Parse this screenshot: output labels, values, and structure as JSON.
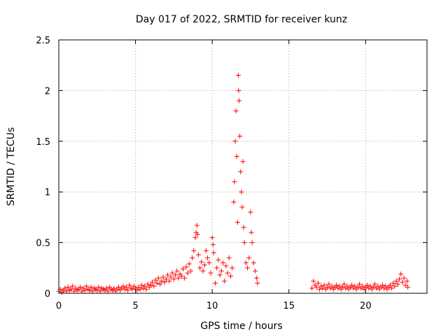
{
  "chart_data": {
    "type": "scatter",
    "title": "Day 017 of 2022, SRMTID for receiver kunz",
    "xlabel": "GPS time / hours",
    "ylabel": "SRMTID / TECUs",
    "xlim": [
      0,
      24
    ],
    "ylim": [
      0,
      2.5
    ],
    "xticks": [
      0,
      5,
      10,
      15,
      20
    ],
    "yticks": [
      0,
      0.5,
      1,
      1.5,
      2,
      2.5
    ],
    "ytick_labels": [
      "0",
      "0.5",
      "1",
      "1.5",
      "2",
      "2.5"
    ],
    "xtick_labels": [
      "0",
      "5",
      "10",
      "15",
      "20"
    ],
    "grid": true,
    "marker": "+",
    "colors": {
      "points": "#ff0000",
      "axes": "#000000",
      "grid": "#a0a0a0"
    },
    "series": [
      {
        "name": "SRMTID",
        "points": [
          [
            0.0,
            0.02
          ],
          [
            0.1,
            0.04
          ],
          [
            0.2,
            0.01
          ],
          [
            0.3,
            0.03
          ],
          [
            0.4,
            0.05
          ],
          [
            0.5,
            0.02
          ],
          [
            0.6,
            0.06
          ],
          [
            0.7,
            0.03
          ],
          [
            0.8,
            0.04
          ],
          [
            0.9,
            0.07
          ],
          [
            1.0,
            0.02
          ],
          [
            1.1,
            0.05
          ],
          [
            1.2,
            0.03
          ],
          [
            1.3,
            0.04
          ],
          [
            1.4,
            0.06
          ],
          [
            1.5,
            0.02
          ],
          [
            1.6,
            0.05
          ],
          [
            1.7,
            0.03
          ],
          [
            1.8,
            0.07
          ],
          [
            1.9,
            0.04
          ],
          [
            2.0,
            0.03
          ],
          [
            2.1,
            0.06
          ],
          [
            2.2,
            0.02
          ],
          [
            2.3,
            0.05
          ],
          [
            2.4,
            0.04
          ],
          [
            2.5,
            0.03
          ],
          [
            2.6,
            0.06
          ],
          [
            2.7,
            0.02
          ],
          [
            2.8,
            0.05
          ],
          [
            2.9,
            0.04
          ],
          [
            3.0,
            0.03
          ],
          [
            3.1,
            0.05
          ],
          [
            3.2,
            0.02
          ],
          [
            3.3,
            0.06
          ],
          [
            3.4,
            0.04
          ],
          [
            3.5,
            0.03
          ],
          [
            3.6,
            0.05
          ],
          [
            3.7,
            0.02
          ],
          [
            3.8,
            0.04
          ],
          [
            3.9,
            0.06
          ],
          [
            4.0,
            0.03
          ],
          [
            4.1,
            0.05
          ],
          [
            4.2,
            0.07
          ],
          [
            4.3,
            0.04
          ],
          [
            4.4,
            0.06
          ],
          [
            4.5,
            0.03
          ],
          [
            4.6,
            0.08
          ],
          [
            4.7,
            0.05
          ],
          [
            4.8,
            0.04
          ],
          [
            4.9,
            0.07
          ],
          [
            5.0,
            0.05
          ],
          [
            5.1,
            0.03
          ],
          [
            5.2,
            0.06
          ],
          [
            5.3,
            0.04
          ],
          [
            5.4,
            0.08
          ],
          [
            5.5,
            0.05
          ],
          [
            5.6,
            0.07
          ],
          [
            5.7,
            0.04
          ],
          [
            5.8,
            0.09
          ],
          [
            5.9,
            0.06
          ],
          [
            6.0,
            0.08
          ],
          [
            6.1,
            0.11
          ],
          [
            6.2,
            0.07
          ],
          [
            6.3,
            0.13
          ],
          [
            6.4,
            0.1
          ],
          [
            6.5,
            0.15
          ],
          [
            6.6,
            0.09
          ],
          [
            6.7,
            0.12
          ],
          [
            6.8,
            0.16
          ],
          [
            6.9,
            0.11
          ],
          [
            7.0,
            0.14
          ],
          [
            7.1,
            0.18
          ],
          [
            7.2,
            0.12
          ],
          [
            7.3,
            0.16
          ],
          [
            7.4,
            0.2
          ],
          [
            7.5,
            0.14
          ],
          [
            7.6,
            0.18
          ],
          [
            7.7,
            0.22
          ],
          [
            7.8,
            0.15
          ],
          [
            7.9,
            0.19
          ],
          [
            8.0,
            0.17
          ],
          [
            8.1,
            0.24
          ],
          [
            8.2,
            0.15
          ],
          [
            8.3,
            0.26
          ],
          [
            8.4,
            0.2
          ],
          [
            8.5,
            0.29
          ],
          [
            8.6,
            0.22
          ],
          [
            8.7,
            0.35
          ],
          [
            8.8,
            0.42
          ],
          [
            8.9,
            0.55
          ],
          [
            8.95,
            0.6
          ],
          [
            9.0,
            0.67
          ],
          [
            9.05,
            0.58
          ],
          [
            9.1,
            0.38
          ],
          [
            9.2,
            0.25
          ],
          [
            9.3,
            0.31
          ],
          [
            9.4,
            0.22
          ],
          [
            9.5,
            0.28
          ],
          [
            9.6,
            0.42
          ],
          [
            9.7,
            0.35
          ],
          [
            9.8,
            0.3
          ],
          [
            9.9,
            0.2
          ],
          [
            10.0,
            0.55
          ],
          [
            10.05,
            0.48
          ],
          [
            10.1,
            0.4
          ],
          [
            10.2,
            0.1
          ],
          [
            10.3,
            0.25
          ],
          [
            10.4,
            0.33
          ],
          [
            10.5,
            0.18
          ],
          [
            10.6,
            0.22
          ],
          [
            10.7,
            0.3
          ],
          [
            10.8,
            0.12
          ],
          [
            10.9,
            0.27
          ],
          [
            11.0,
            0.2
          ],
          [
            11.1,
            0.35
          ],
          [
            11.2,
            0.17
          ],
          [
            11.3,
            0.25
          ],
          [
            11.4,
            0.9
          ],
          [
            11.45,
            1.1
          ],
          [
            11.5,
            1.5
          ],
          [
            11.55,
            1.8
          ],
          [
            11.6,
            1.35
          ],
          [
            11.65,
            0.7
          ],
          [
            11.7,
            2.15
          ],
          [
            11.72,
            2.0
          ],
          [
            11.75,
            1.9
          ],
          [
            11.8,
            1.55
          ],
          [
            11.85,
            1.2
          ],
          [
            11.9,
            1.0
          ],
          [
            11.95,
            0.85
          ],
          [
            12.0,
            1.3
          ],
          [
            12.05,
            0.65
          ],
          [
            12.1,
            0.5
          ],
          [
            12.2,
            0.3
          ],
          [
            12.3,
            0.25
          ],
          [
            12.4,
            0.35
          ],
          [
            12.5,
            0.8
          ],
          [
            12.55,
            0.6
          ],
          [
            12.6,
            0.5
          ],
          [
            12.7,
            0.3
          ],
          [
            12.8,
            0.22
          ],
          [
            12.9,
            0.15
          ],
          [
            12.95,
            0.1
          ],
          [
            16.5,
            0.05
          ],
          [
            16.6,
            0.12
          ],
          [
            16.7,
            0.08
          ],
          [
            16.8,
            0.06
          ],
          [
            16.9,
            0.1
          ],
          [
            17.0,
            0.04
          ],
          [
            17.1,
            0.07
          ],
          [
            17.2,
            0.05
          ],
          [
            17.3,
            0.08
          ],
          [
            17.4,
            0.04
          ],
          [
            17.5,
            0.06
          ],
          [
            17.6,
            0.09
          ],
          [
            17.7,
            0.05
          ],
          [
            17.8,
            0.07
          ],
          [
            17.9,
            0.04
          ],
          [
            18.0,
            0.06
          ],
          [
            18.1,
            0.08
          ],
          [
            18.2,
            0.05
          ],
          [
            18.3,
            0.07
          ],
          [
            18.4,
            0.04
          ],
          [
            18.5,
            0.06
          ],
          [
            18.6,
            0.09
          ],
          [
            18.7,
            0.05
          ],
          [
            18.8,
            0.07
          ],
          [
            18.9,
            0.04
          ],
          [
            19.0,
            0.06
          ],
          [
            19.1,
            0.08
          ],
          [
            19.2,
            0.05
          ],
          [
            19.3,
            0.07
          ],
          [
            19.4,
            0.04
          ],
          [
            19.5,
            0.06
          ],
          [
            19.6,
            0.09
          ],
          [
            19.7,
            0.05
          ],
          [
            19.8,
            0.07
          ],
          [
            19.9,
            0.04
          ],
          [
            20.0,
            0.06
          ],
          [
            20.1,
            0.08
          ],
          [
            20.2,
            0.05
          ],
          [
            20.3,
            0.07
          ],
          [
            20.4,
            0.04
          ],
          [
            20.5,
            0.06
          ],
          [
            20.6,
            0.09
          ],
          [
            20.7,
            0.05
          ],
          [
            20.8,
            0.07
          ],
          [
            20.9,
            0.04
          ],
          [
            21.0,
            0.06
          ],
          [
            21.1,
            0.08
          ],
          [
            21.2,
            0.05
          ],
          [
            21.3,
            0.07
          ],
          [
            21.4,
            0.04
          ],
          [
            21.5,
            0.06
          ],
          [
            21.6,
            0.08
          ],
          [
            21.7,
            0.05
          ],
          [
            21.8,
            0.1
          ],
          [
            21.9,
            0.07
          ],
          [
            22.0,
            0.12
          ],
          [
            22.1,
            0.09
          ],
          [
            22.2,
            0.14
          ],
          [
            22.3,
            0.19
          ],
          [
            22.4,
            0.11
          ],
          [
            22.5,
            0.15
          ],
          [
            22.6,
            0.08
          ],
          [
            22.7,
            0.12
          ],
          [
            22.75,
            0.06
          ]
        ]
      }
    ]
  }
}
